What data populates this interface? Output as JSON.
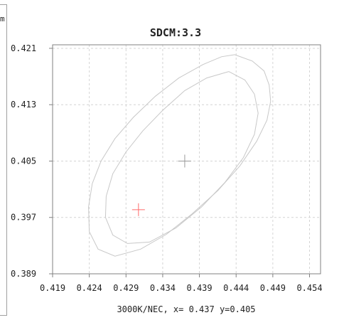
{
  "panel": {
    "glyph": "m"
  },
  "chart_data": {
    "type": "scatter",
    "title": "SDCM:3.3",
    "xlabel": "3000K/NEC, x= 0.437 y=0.405",
    "ylabel": "",
    "xlim": [
      0.419,
      0.4555
    ],
    "ylim": [
      0.389,
      0.4215
    ],
    "x_ticks": [
      "0.419",
      "0.424",
      "0.429",
      "0.434",
      "0.439",
      "0.444",
      "0.449",
      "0.454"
    ],
    "y_ticks": [
      "0.421",
      "0.413",
      "0.405",
      "0.397",
      "0.389"
    ],
    "grid": true,
    "colors": {
      "ellipse": "#c8c8c8",
      "grid": "#d4d4d4",
      "center_marker": "#999999",
      "measured_marker": "#ff6a6a",
      "axis": "#808080",
      "text": "#222222"
    },
    "series": [
      {
        "role": "outer-ellipse",
        "x": [
          0.4438,
          0.4462,
          0.4478,
          0.4485,
          0.4487,
          0.4482,
          0.4468,
          0.4445,
          0.4415,
          0.438,
          0.4345,
          0.431,
          0.4275,
          0.4252,
          0.424,
          0.4239,
          0.4244,
          0.4256,
          0.4275,
          0.43,
          0.433,
          0.4362,
          0.4395,
          0.442,
          0.4438
        ],
        "y": [
          0.4201,
          0.4192,
          0.4178,
          0.4158,
          0.4135,
          0.4108,
          0.4078,
          0.4043,
          0.4008,
          0.3975,
          0.3946,
          0.3925,
          0.3915,
          0.3925,
          0.395,
          0.3985,
          0.4018,
          0.405,
          0.4082,
          0.4112,
          0.4142,
          0.4168,
          0.4187,
          0.4198,
          0.4201
        ]
      },
      {
        "role": "inner-ellipse",
        "x": [
          0.443,
          0.4452,
          0.4465,
          0.447,
          0.4465,
          0.445,
          0.4425,
          0.4393,
          0.4358,
          0.4322,
          0.4292,
          0.4272,
          0.4262,
          0.4263,
          0.4272,
          0.429,
          0.4313,
          0.434,
          0.437,
          0.44,
          0.443
        ],
        "y": [
          0.4177,
          0.4165,
          0.4145,
          0.4118,
          0.4088,
          0.4055,
          0.402,
          0.3985,
          0.3955,
          0.3935,
          0.3933,
          0.3945,
          0.397,
          0.4,
          0.4032,
          0.4063,
          0.4093,
          0.4122,
          0.415,
          0.4168,
          0.4177
        ]
      }
    ],
    "markers": [
      {
        "role": "center",
        "x": 0.437,
        "y": 0.405
      },
      {
        "role": "measured",
        "x": 0.4307,
        "y": 0.3981
      }
    ]
  }
}
